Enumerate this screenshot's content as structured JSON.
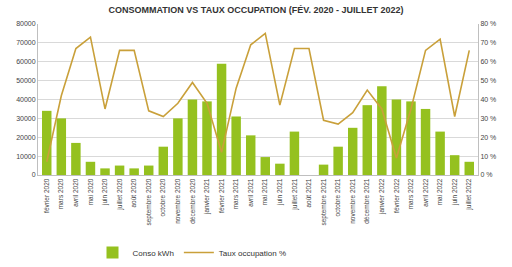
{
  "chart_data": {
    "type": "bar",
    "title": "CONSOMMATION VS TAUX OCCUPATION (FÉV. 2020 - JUILLET 2022)",
    "categories": [
      "février 2020",
      "mars 2020",
      "avril 2020",
      "mai 2020",
      "juin 2020",
      "juillet 2020",
      "août 2020",
      "septembre 2020",
      "octobre 2020",
      "novembre 2020",
      "décembre 2020",
      "janvier 2021",
      "février 2021",
      "mars 2021",
      "avril 2021",
      "mai 2021",
      "juin 2021",
      "juillet 2021",
      "août 2021",
      "septembre 2021",
      "octobre 2021",
      "novembre 2021",
      "décembre 2021",
      "janvier 2022",
      "février 2022",
      "mars 2022",
      "avril 2022",
      "mai 2022",
      "juin 2022",
      "juillet 2022"
    ],
    "series": [
      {
        "name": "Conso kWh",
        "type": "bar",
        "color": "#95c11f",
        "values": [
          34000,
          30000,
          17000,
          7000,
          3500,
          5000,
          3500,
          5000,
          15000,
          30000,
          40000,
          39000,
          59000,
          31000,
          21000,
          9500,
          6000,
          23000,
          0,
          5500,
          15000,
          25000,
          37000,
          47000,
          40000,
          39000,
          35000,
          23000,
          10500,
          7000
        ]
      },
      {
        "name": "Taux occupation %",
        "type": "line",
        "axis": "y2",
        "color": "#c9a03a",
        "values": [
          7,
          42,
          67,
          73,
          35,
          66,
          66,
          34,
          31,
          38,
          49,
          38,
          12,
          46,
          69,
          75,
          37,
          67,
          67,
          29,
          27,
          33,
          45,
          35,
          9,
          35,
          66,
          72,
          31,
          66
        ]
      }
    ],
    "ylim": [
      0,
      80000
    ],
    "yticks": [
      0,
      10000,
      20000,
      30000,
      40000,
      50000,
      60000,
      70000,
      80000
    ],
    "y2lim": [
      0,
      80
    ],
    "y2ticks": [
      {
        "value": 0,
        "label": "0 %"
      },
      {
        "value": 10,
        "label": "10 %"
      },
      {
        "value": 20,
        "label": "20 %"
      },
      {
        "value": 30,
        "label": "30 %"
      },
      {
        "value": 40,
        "label": "40 %"
      },
      {
        "value": 50,
        "label": "50 %"
      },
      {
        "value": 60,
        "label": "60 %"
      },
      {
        "value": 70,
        "label": "70 %"
      },
      {
        "value": 80,
        "label": "80 %"
      }
    ],
    "grid": true,
    "legend": "bottom"
  }
}
